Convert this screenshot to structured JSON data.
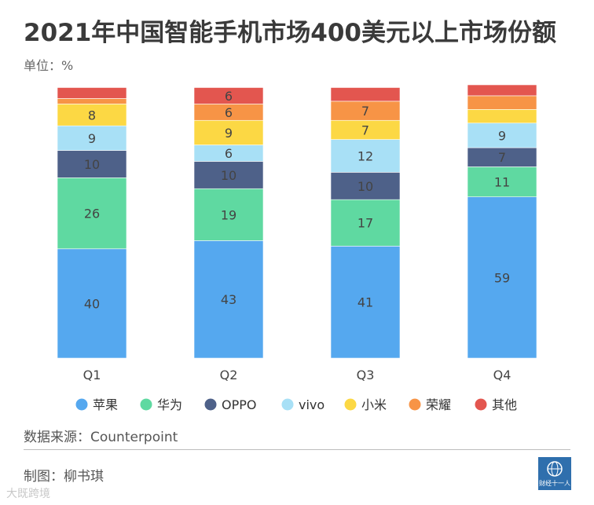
{
  "title": "2021年中国智能手机市场400美元以上市场份额",
  "unit": "单位：%",
  "source": "数据来源：Counterpoint",
  "credit": "制图：柳书琪",
  "logo_text": "财经十一人",
  "watermark": "大既跨境",
  "chart_data": {
    "type": "bar",
    "stacked": true,
    "categories": [
      "Q1",
      "Q2",
      "Q3",
      "Q4"
    ],
    "ylim": [
      0,
      100
    ],
    "series": [
      {
        "name": "苹果",
        "color": "#55a8ef",
        "values": [
          40,
          43,
          41,
          59
        ],
        "labels": [
          "40",
          "43",
          "41",
          "59"
        ]
      },
      {
        "name": "华为",
        "color": "#5fd9a1",
        "values": [
          26,
          19,
          17,
          11
        ],
        "labels": [
          "26",
          "19",
          "17",
          "11"
        ]
      },
      {
        "name": "OPPO",
        "color": "#4e6189",
        "values": [
          10,
          10,
          10,
          7
        ],
        "labels": [
          "10",
          "10",
          "10",
          "7"
        ]
      },
      {
        "name": "vivo",
        "color": "#a8e0f6",
        "values": [
          9,
          6,
          12,
          9
        ],
        "labels": [
          "9",
          "6",
          "12",
          "9"
        ]
      },
      {
        "name": "小米",
        "color": "#fcd844",
        "values": [
          8,
          9,
          7,
          5
        ],
        "labels": [
          "8",
          "9",
          "7",
          ""
        ]
      },
      {
        "name": "荣耀",
        "color": "#f79446",
        "values": [
          2,
          6,
          7,
          5
        ],
        "labels": [
          "",
          "6",
          "7",
          ""
        ]
      },
      {
        "name": "其他",
        "color": "#e3564f",
        "values": [
          4,
          6,
          5,
          4
        ],
        "labels": [
          "",
          "6",
          "",
          ""
        ]
      }
    ]
  }
}
